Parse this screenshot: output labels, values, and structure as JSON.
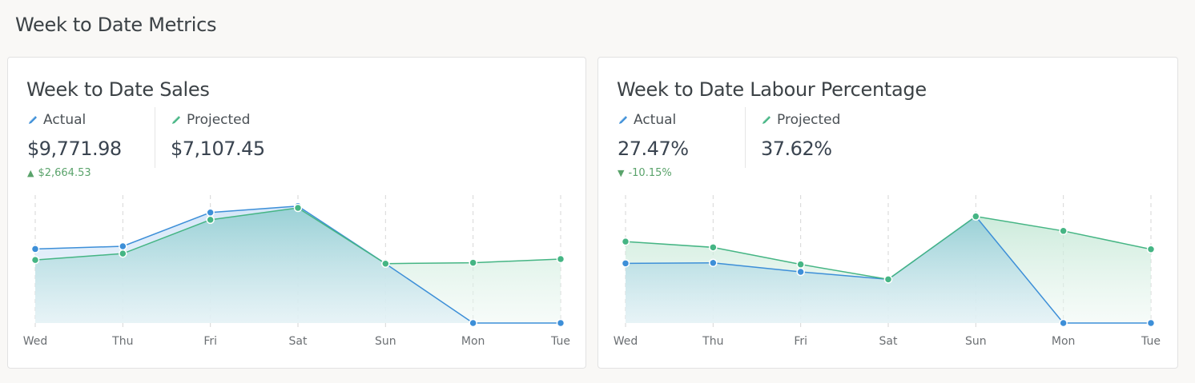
{
  "page": {
    "title": "Week to Date Metrics"
  },
  "colors": {
    "actual": "#3d8fd8",
    "projected": "#45b584",
    "delta_up": "#5aa36b",
    "delta_down": "#5aa36b"
  },
  "cards": [
    {
      "title": "Week to Date Sales",
      "actual": {
        "label": "Actual",
        "icon": "pencil-icon",
        "value": "$9,771.98"
      },
      "projected": {
        "label": "Projected",
        "icon": "pencil-icon",
        "value": "$7,107.45"
      },
      "delta": {
        "direction": "up",
        "symbol": "▲",
        "value": "$2,664.53"
      }
    },
    {
      "title": "Week to Date Labour Percentage",
      "actual": {
        "label": "Actual",
        "icon": "pencil-icon",
        "value": "27.47%"
      },
      "projected": {
        "label": "Projected",
        "icon": "pencil-icon",
        "value": "37.62%"
      },
      "delta": {
        "direction": "down",
        "symbol": "▼",
        "value": "-10.15%"
      }
    }
  ],
  "chart_data": [
    {
      "type": "area",
      "title": "Week to Date Sales",
      "categories": [
        "Wed",
        "Thu",
        "Fri",
        "Sat",
        "Sun",
        "Mon",
        "Tue"
      ],
      "series": [
        {
          "name": "Actual",
          "color": "#3d8fd8",
          "values": [
            1620,
            1680,
            2420,
            2560,
            1300,
            0,
            0
          ]
        },
        {
          "name": "Projected",
          "color": "#45b584",
          "values": [
            1380,
            1520,
            2260,
            2520,
            1300,
            1320,
            1400
          ]
        }
      ],
      "ylim": [
        0,
        2800
      ],
      "grid": "vertical dashed",
      "legend": "none",
      "xlabel": "",
      "ylabel": ""
    },
    {
      "type": "area",
      "title": "Week to Date Labour Percentage",
      "categories": [
        "Wed",
        "Thu",
        "Fri",
        "Sat",
        "Sun",
        "Mon",
        "Tue"
      ],
      "series": [
        {
          "name": "Actual",
          "color": "#3d8fd8",
          "values": [
            28.0,
            28.2,
            24.0,
            20.5,
            50.0,
            0,
            0
          ]
        },
        {
          "name": "Projected",
          "color": "#45b584",
          "values": [
            38.2,
            35.5,
            27.5,
            20.5,
            50.0,
            43.2,
            34.6
          ]
        }
      ],
      "ylim": [
        0,
        60
      ],
      "grid": "vertical dashed",
      "legend": "none",
      "xlabel": "",
      "ylabel": ""
    }
  ]
}
